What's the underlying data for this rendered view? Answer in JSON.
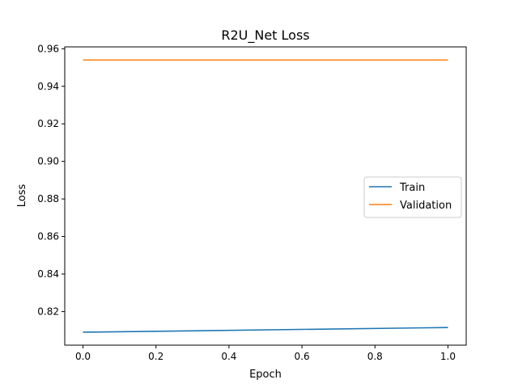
{
  "chart_data": {
    "type": "line",
    "title": "R2U_Net Loss",
    "xlabel": "Epoch",
    "ylabel": "Loss",
    "xlim": [
      -0.05,
      1.05
    ],
    "ylim": [
      0.8021,
      0.961
    ],
    "x_ticks": [
      0.0,
      0.2,
      0.4,
      0.6,
      0.8,
      1.0
    ],
    "x_tick_labels": [
      "0.0",
      "0.2",
      "0.4",
      "0.6",
      "0.8",
      "1.0"
    ],
    "y_ticks": [
      0.82,
      0.84,
      0.86,
      0.88,
      0.9,
      0.92,
      0.94,
      0.96
    ],
    "y_tick_labels": [
      "0.82",
      "0.84",
      "0.86",
      "0.88",
      "0.90",
      "0.92",
      "0.94",
      "0.96"
    ],
    "grid": false,
    "legend_position": "center-right",
    "series": [
      {
        "name": "Train",
        "color": "#1f77b4",
        "x": [
          0,
          1
        ],
        "y": [
          0.809,
          0.8115
        ]
      },
      {
        "name": "Validation",
        "color": "#ff7f0e",
        "x": [
          0,
          1
        ],
        "y": [
          0.954,
          0.954
        ]
      }
    ]
  }
}
